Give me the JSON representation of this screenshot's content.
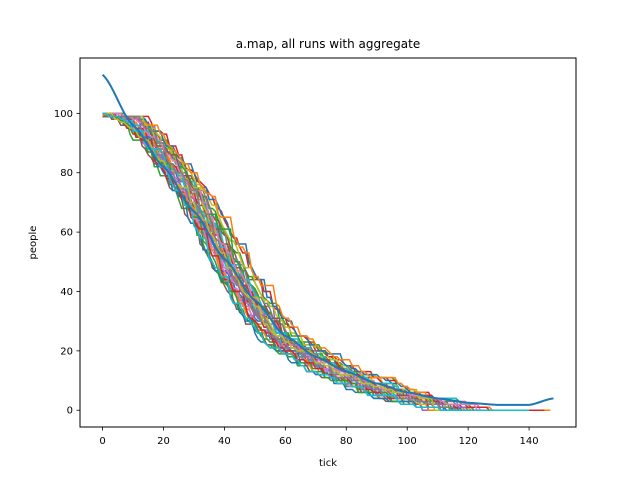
{
  "chart_data": {
    "type": "line",
    "title": "a.map, all runs with aggregate",
    "xlabel": "tick",
    "ylabel": "people",
    "xlim": [
      -7.4,
      155.4
    ],
    "ylim": [
      -5.65,
      118.65
    ],
    "xticks": [
      0,
      20,
      40,
      60,
      80,
      100,
      120,
      140
    ],
    "yticks": [
      0,
      20,
      40,
      60,
      80,
      100
    ],
    "grid": false,
    "legend": "none",
    "colors": [
      "#1f77b4",
      "#ff7f0e",
      "#2ca02c",
      "#d62728",
      "#9467bd",
      "#8c564b",
      "#e377c2",
      "#7f7f7f",
      "#bcbd22",
      "#17becf"
    ],
    "runs": {
      "count": 40,
      "start_value": 100,
      "approx_profile": {
        "x": [
          0,
          5,
          10,
          15,
          20,
          25,
          30,
          35,
          40,
          45,
          50,
          55,
          60,
          65,
          70,
          75,
          80,
          85,
          90,
          95,
          100,
          105,
          110,
          115,
          120,
          125,
          130,
          135,
          140
        ],
        "y": [
          100,
          100,
          98,
          92,
          86,
          79,
          72,
          62,
          52,
          43,
          35,
          28,
          23,
          20,
          17,
          14,
          12,
          10,
          8,
          6,
          5,
          4,
          3,
          2,
          1.5,
          1,
          0.6,
          0.3,
          0
        ]
      },
      "end_tick_range": [
        108,
        148
      ]
    },
    "series": [
      {
        "x": [
          0,
          10,
          20,
          30,
          40,
          50,
          60,
          70,
          80,
          90,
          100,
          110,
          120,
          130,
          140,
          148
        ],
        "y": [
          113,
          96,
          82,
          67,
          51,
          37,
          25,
          18,
          13,
          9,
          6,
          4,
          2.5,
          1.8,
          1.8,
          4
        ],
        "color": "#1f77b4",
        "role": "aggregate"
      }
    ]
  }
}
